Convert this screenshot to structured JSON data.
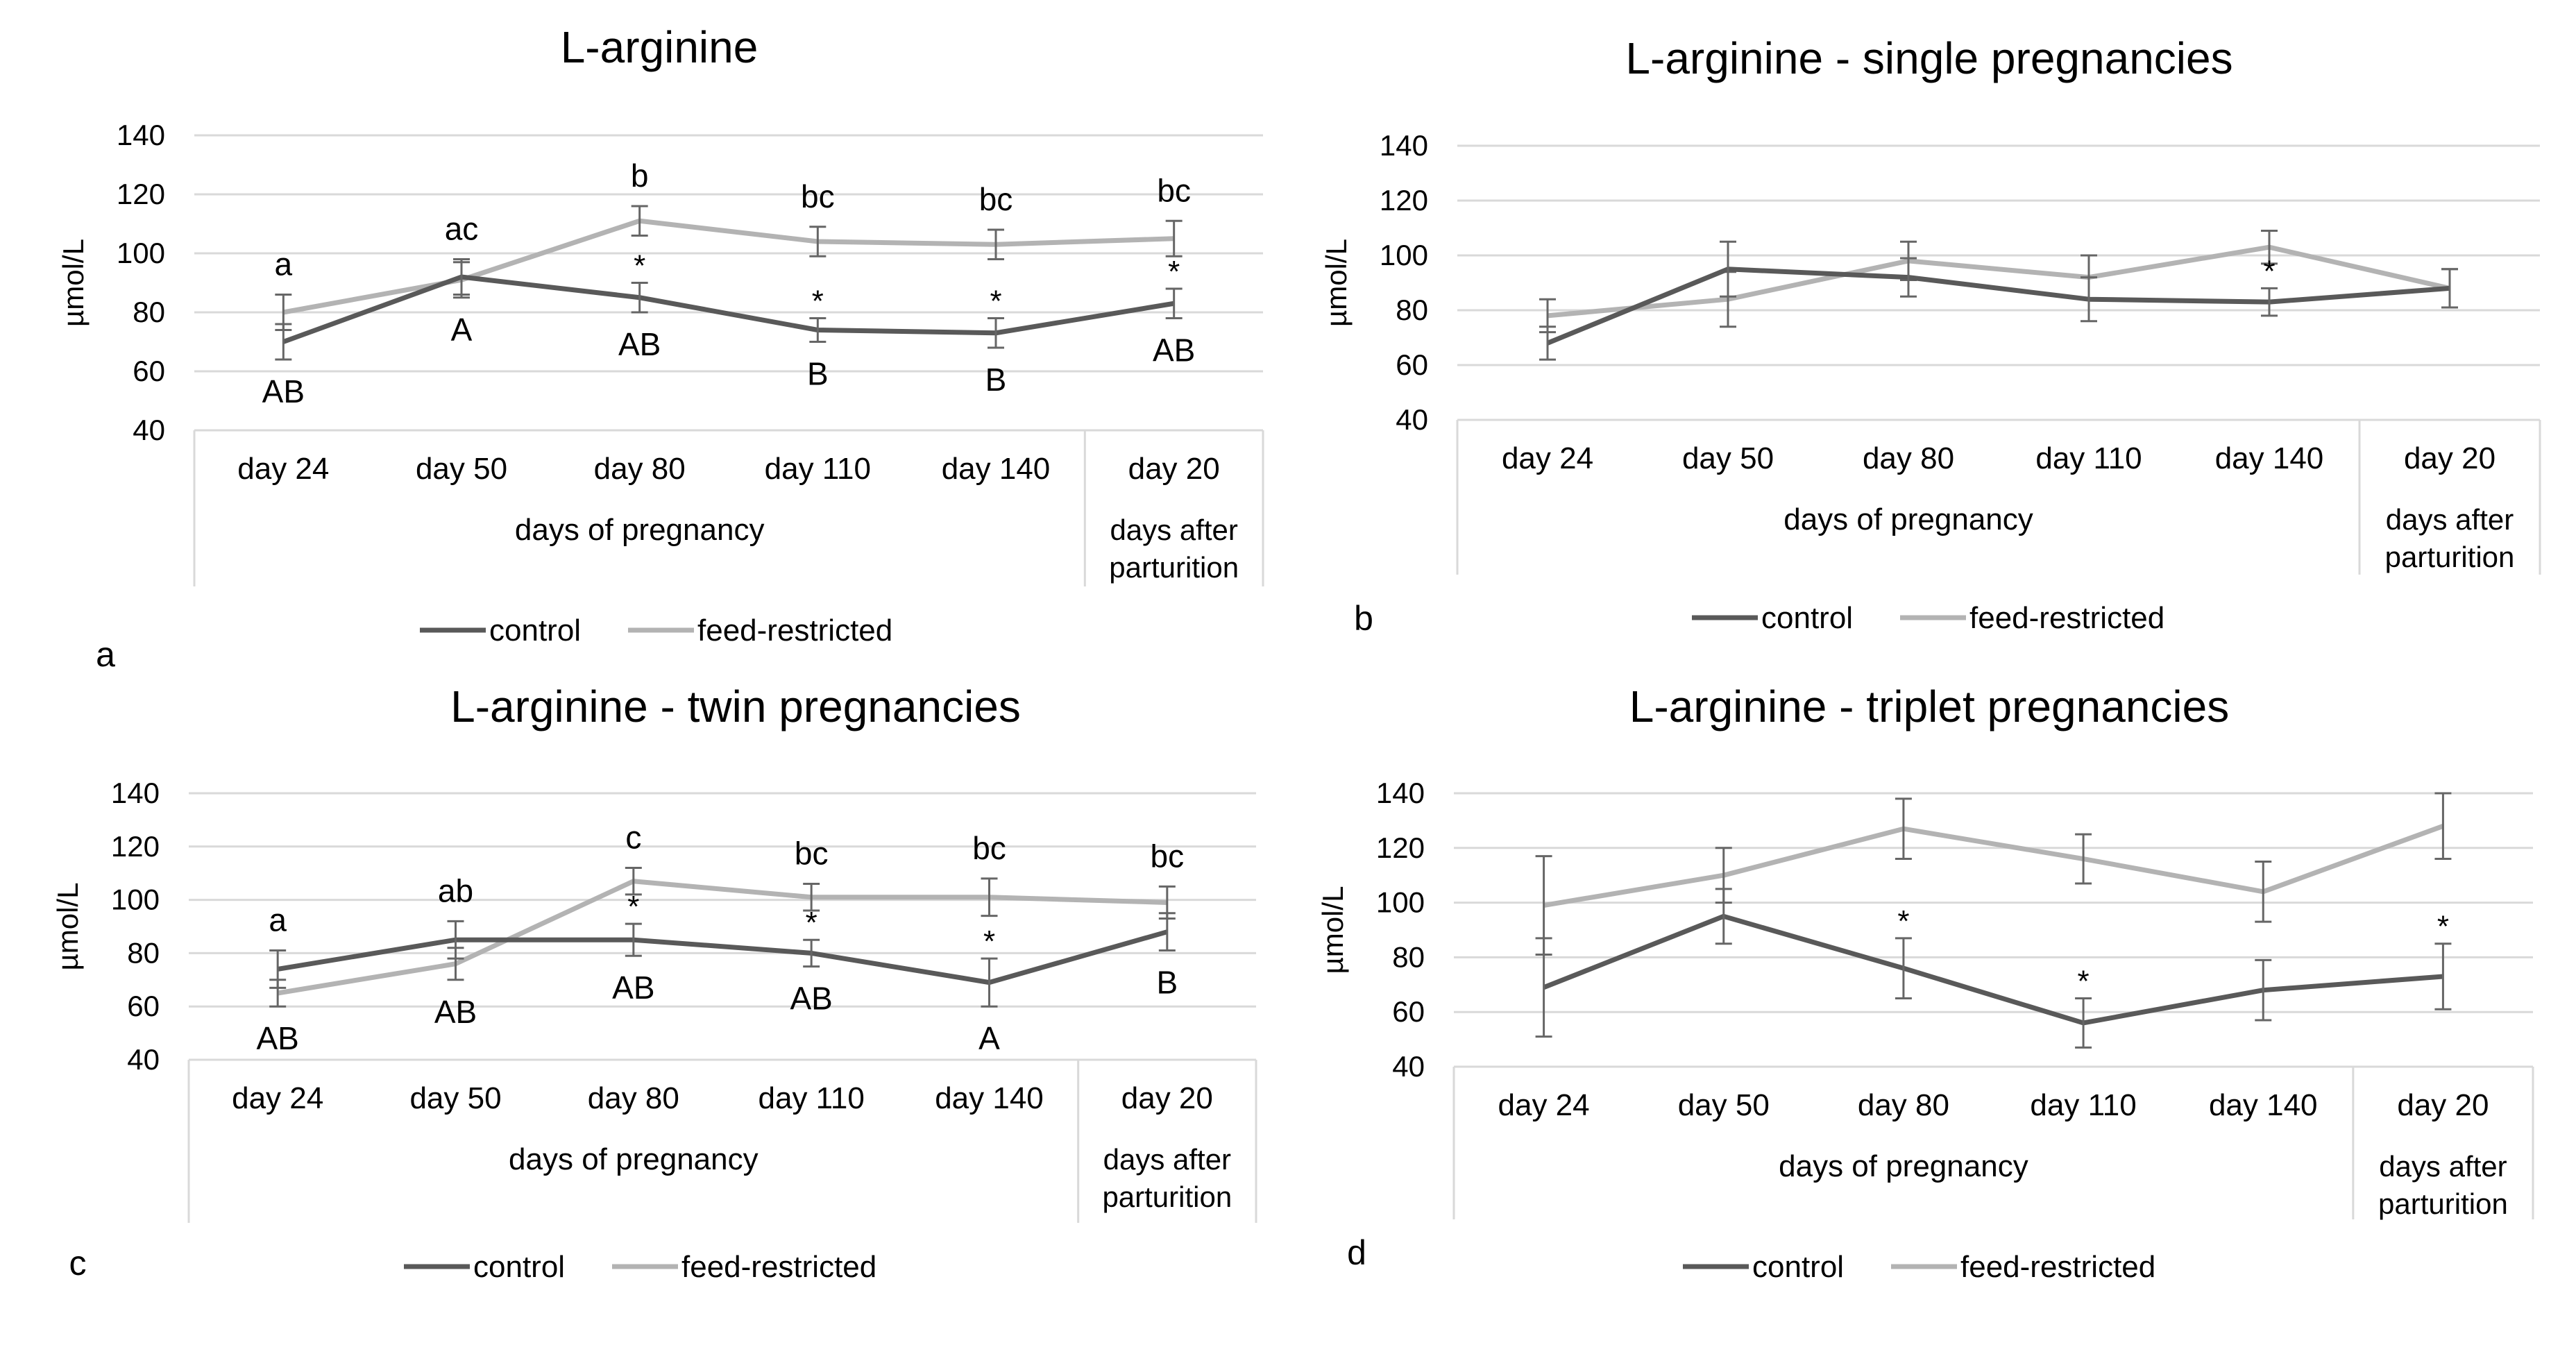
{
  "colors": {
    "control": "#595959",
    "feed_restricted": "#b3b3b3",
    "grid": "#d9d9d9",
    "text": "#000000",
    "axis_text": "#404040"
  },
  "chart_data": [
    {
      "type": "line",
      "panel_label": "a",
      "title": "L-arginine",
      "ylabel": "µmol/L",
      "ylim": [
        40,
        140
      ],
      "yticks": [
        40,
        60,
        80,
        100,
        120,
        140
      ],
      "categories": [
        "day 24",
        "day 50",
        "day 80",
        "day 110",
        "day 140",
        "day 20"
      ],
      "group_labels": [
        "days of pregnancy",
        "days after parturition"
      ],
      "series": [
        {
          "name": "control",
          "values": [
            70,
            92,
            85,
            74,
            73,
            83
          ],
          "errors": [
            6,
            6,
            5,
            4,
            5,
            5
          ],
          "point_labels": [
            "AB",
            "A",
            "AB",
            "B",
            "B",
            "AB"
          ]
        },
        {
          "name": "feed-restricted",
          "values": [
            80,
            91,
            111,
            104,
            103,
            105
          ],
          "errors": [
            6,
            6,
            5,
            5,
            5,
            6
          ],
          "point_labels": [
            "a",
            "ac",
            "b",
            "bc",
            "bc",
            "bc"
          ]
        }
      ],
      "asterisks": [
        false,
        false,
        true,
        true,
        true,
        true
      ]
    },
    {
      "type": "line",
      "panel_label": "b",
      "title": "L-arginine - single pregnancies",
      "ylabel": "µmol/L",
      "ylim": [
        40,
        140
      ],
      "yticks": [
        40,
        60,
        80,
        100,
        120,
        140
      ],
      "categories": [
        "day 24",
        "day 50",
        "day 80",
        "day 110",
        "day 140",
        "day 20"
      ],
      "group_labels": [
        "days of pregnancy",
        "days after parturition"
      ],
      "series": [
        {
          "name": "control",
          "values": [
            68,
            95,
            92,
            84,
            83,
            88
          ],
          "errors": [
            6,
            10,
            7,
            8,
            5,
            7
          ]
        },
        {
          "name": "feed-restricted",
          "values": [
            78,
            84,
            98,
            92,
            103,
            88
          ],
          "errors": [
            6,
            10,
            7,
            8,
            6,
            7
          ]
        }
      ],
      "asterisks": [
        false,
        false,
        false,
        false,
        true,
        false
      ]
    },
    {
      "type": "line",
      "panel_label": "c",
      "title": "L-arginine - twin pregnancies",
      "ylabel": "µmol/L",
      "ylim": [
        40,
        140
      ],
      "yticks": [
        40,
        60,
        80,
        100,
        120,
        140
      ],
      "categories": [
        "day 24",
        "day 50",
        "day 80",
        "day 110",
        "day 140",
        "day 20"
      ],
      "group_labels": [
        "days of pregnancy",
        "days after parturition"
      ],
      "series": [
        {
          "name": "control",
          "values": [
            74,
            85,
            85,
            80,
            69,
            88
          ],
          "errors": [
            7,
            7,
            6,
            5,
            9,
            7
          ],
          "point_labels": [
            "AB",
            "AB",
            "AB",
            "AB",
            "A",
            "B"
          ]
        },
        {
          "name": "feed-restricted",
          "values": [
            65,
            76,
            107,
            101,
            101,
            99
          ],
          "errors": [
            5,
            6,
            5,
            5,
            7,
            6
          ],
          "point_labels": [
            "a",
            "ab",
            "c",
            "bc",
            "bc",
            "bc"
          ]
        }
      ],
      "asterisks": [
        false,
        false,
        true,
        true,
        true,
        false
      ]
    },
    {
      "type": "line",
      "panel_label": "d",
      "title": "L-arginine - triplet pregnancies",
      "ylabel": "µmol/L",
      "ylim": [
        40,
        140
      ],
      "yticks": [
        40,
        60,
        80,
        100,
        120,
        140
      ],
      "categories": [
        "day 24",
        "day 50",
        "day 80",
        "day 110",
        "day 140",
        "day 20"
      ],
      "group_labels": [
        "days of pregnancy",
        "days after parturition"
      ],
      "series": [
        {
          "name": "control",
          "values": [
            69,
            95,
            76,
            56,
            68,
            73
          ],
          "errors": [
            18,
            10,
            11,
            9,
            11,
            12
          ]
        },
        {
          "name": "feed-restricted",
          "values": [
            99,
            110,
            127,
            116,
            104,
            128
          ],
          "errors": [
            18,
            10,
            11,
            9,
            11,
            12
          ]
        }
      ],
      "asterisks": [
        false,
        false,
        true,
        true,
        false,
        true
      ]
    }
  ]
}
